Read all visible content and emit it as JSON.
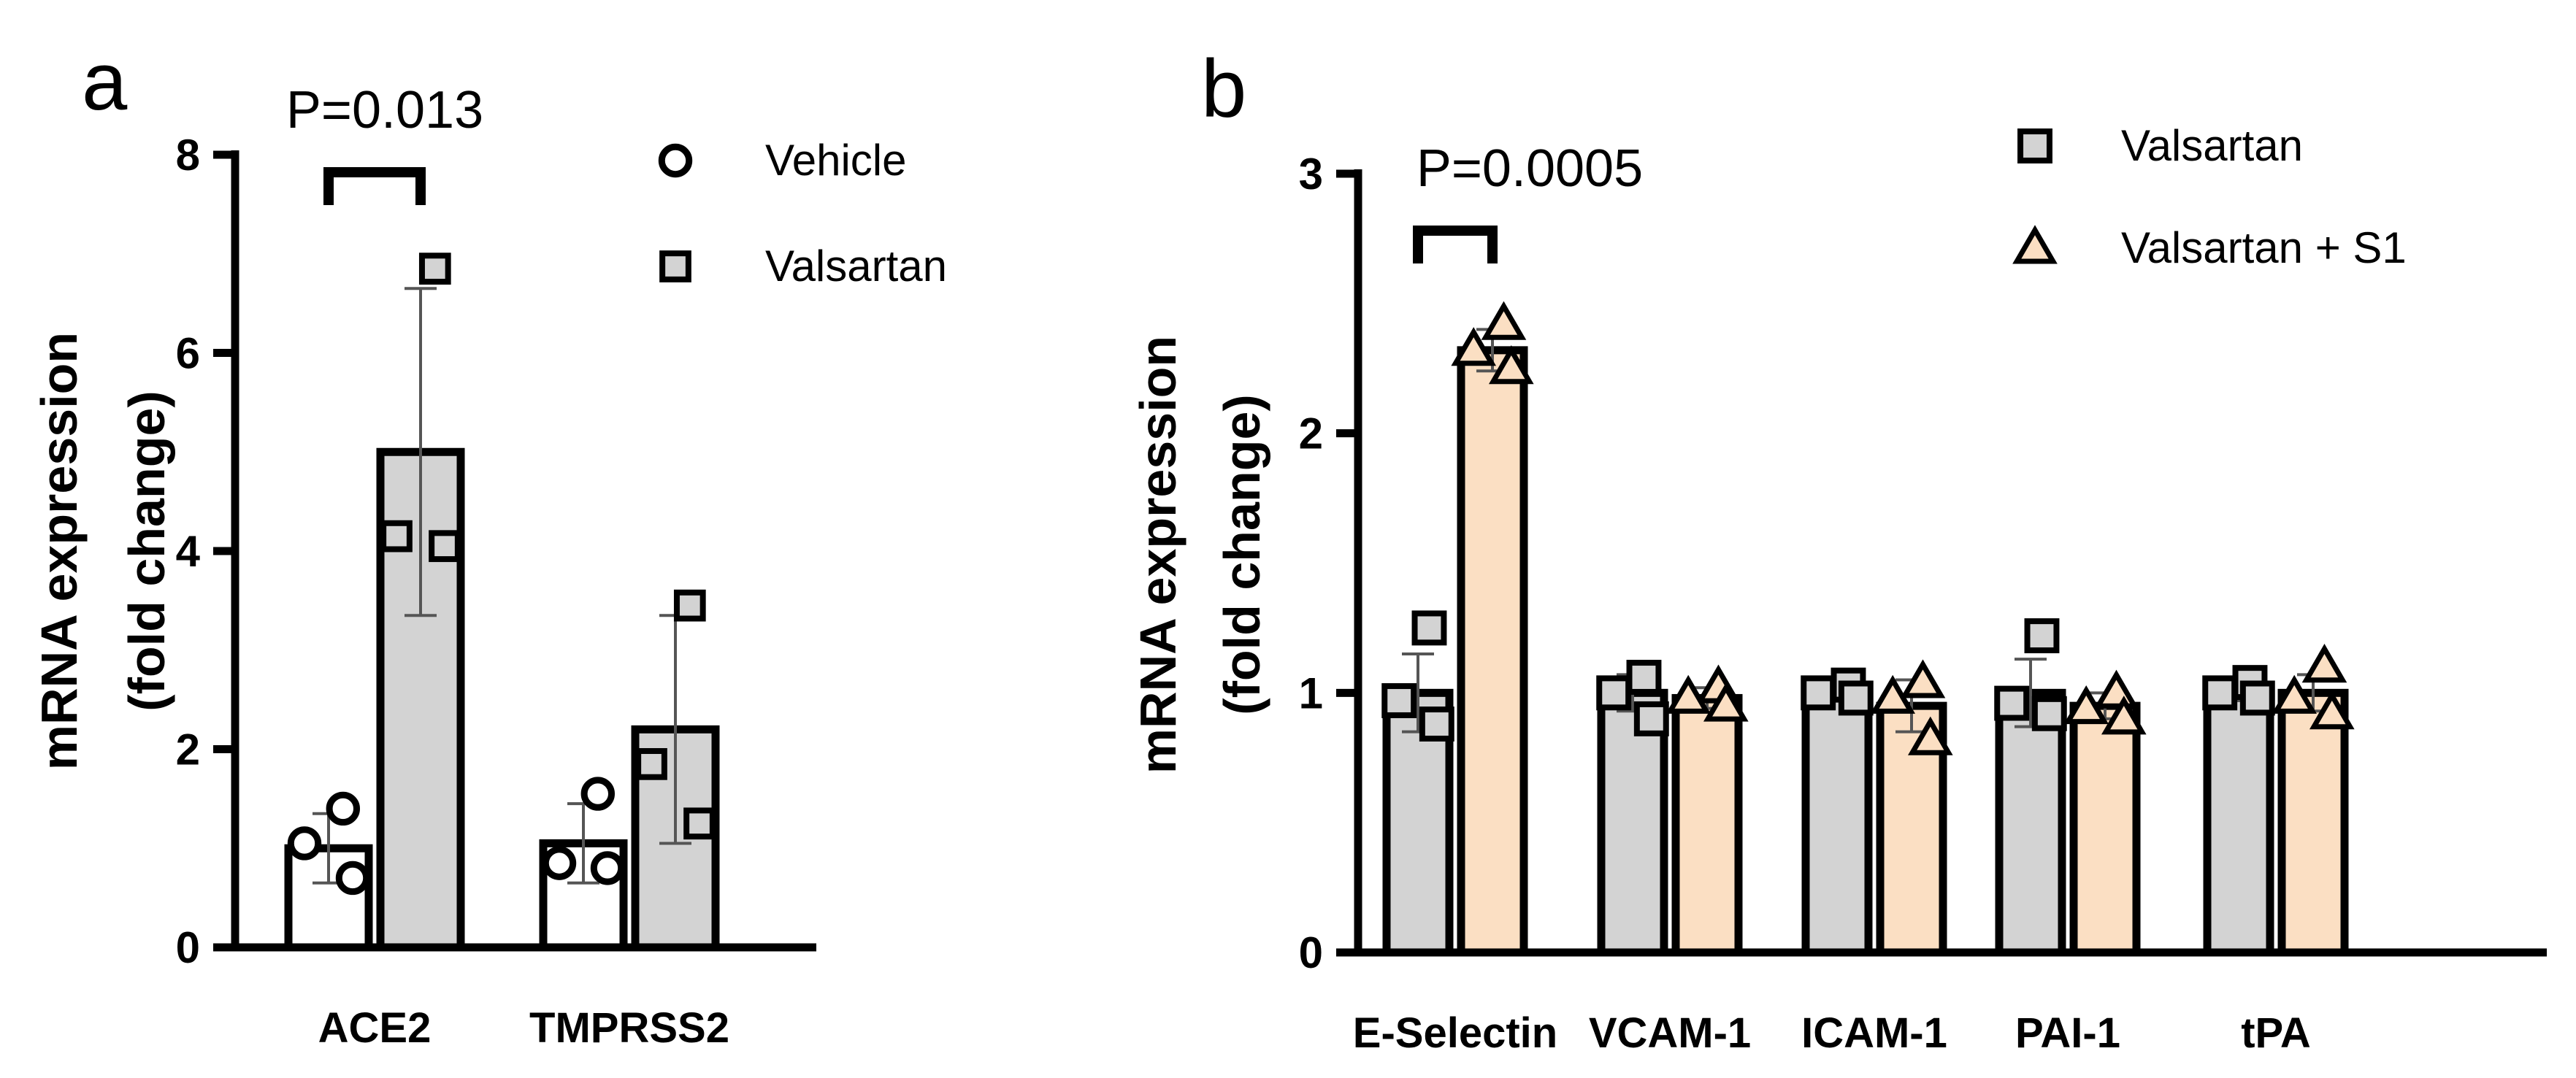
{
  "colors": {
    "vehicle_fill": "#ffffff",
    "valsartan_fill": "#d3d3d3",
    "s1_fill": "#fbdfc3",
    "stroke": "#000000",
    "errorbar": "#555555"
  },
  "chart_data": [
    {
      "panel": "a",
      "type": "bar",
      "ylabel_line1": "mRNA expression",
      "ylabel_line2": "(fold change)",
      "ylim": [
        0,
        8
      ],
      "yticks": [
        0,
        2,
        4,
        6,
        8
      ],
      "ytick_labels": [
        "0",
        "2",
        "4",
        "6",
        "8"
      ],
      "categories": [
        "ACE2",
        "TMPRSS2"
      ],
      "legend": [
        "Vehicle",
        "Valsartan"
      ],
      "series": [
        {
          "name": "Vehicle",
          "marker": "circle",
          "values": [
            1.0,
            1.05
          ],
          "sd": [
            0.35,
            0.4
          ],
          "points": [
            [
              1.4,
              1.05,
              0.7
            ],
            [
              1.55,
              0.85,
              0.8
            ]
          ]
        },
        {
          "name": "Valsartan",
          "marker": "square",
          "values": [
            5.0,
            2.2
          ],
          "sd": [
            1.65,
            1.15
          ],
          "points": [
            [
              6.85,
              4.15,
              4.05
            ],
            [
              3.45,
              1.85,
              1.25
            ]
          ]
        }
      ],
      "annotation": {
        "text": "P=0.013",
        "category": "ACE2"
      }
    },
    {
      "panel": "b",
      "type": "bar",
      "ylabel_line1": "mRNA expression",
      "ylabel_line2": "(fold change)",
      "ylim": [
        0,
        3
      ],
      "yticks": [
        0,
        1,
        2,
        3
      ],
      "ytick_labels": [
        "0",
        "1",
        "2",
        "3"
      ],
      "categories": [
        "E-Selectin",
        "VCAM-1",
        "ICAM-1",
        "PAI-1",
        "tPA"
      ],
      "legend": [
        "Valsartan",
        "Valsartan + S1"
      ],
      "series": [
        {
          "name": "Valsartan",
          "marker": "square",
          "values": [
            1.0,
            1.0,
            1.0,
            1.0,
            1.0
          ],
          "sd": [
            0.15,
            0.07,
            0.03,
            0.13,
            0.03
          ],
          "points": [
            [
              1.25,
              0.97,
              0.88
            ],
            [
              1.06,
              1.0,
              0.9
            ],
            [
              1.03,
              1.0,
              0.98
            ],
            [
              1.22,
              0.96,
              0.92
            ],
            [
              1.04,
              1.0,
              0.98
            ]
          ]
        },
        {
          "name": "Valsartan + S1",
          "marker": "triangle",
          "values": [
            2.32,
            0.98,
            0.95,
            0.95,
            1.0
          ],
          "sd": [
            0.08,
            0.04,
            0.1,
            0.05,
            0.07
          ],
          "points": [
            [
              2.42,
              2.32,
              2.25
            ],
            [
              1.02,
              0.98,
              0.95
            ],
            [
              1.04,
              0.98,
              0.82
            ],
            [
              1.0,
              0.94,
              0.9
            ],
            [
              1.1,
              0.98,
              0.92
            ]
          ]
        }
      ],
      "annotation": {
        "text": "P=0.0005",
        "category": "E-Selectin"
      }
    }
  ]
}
